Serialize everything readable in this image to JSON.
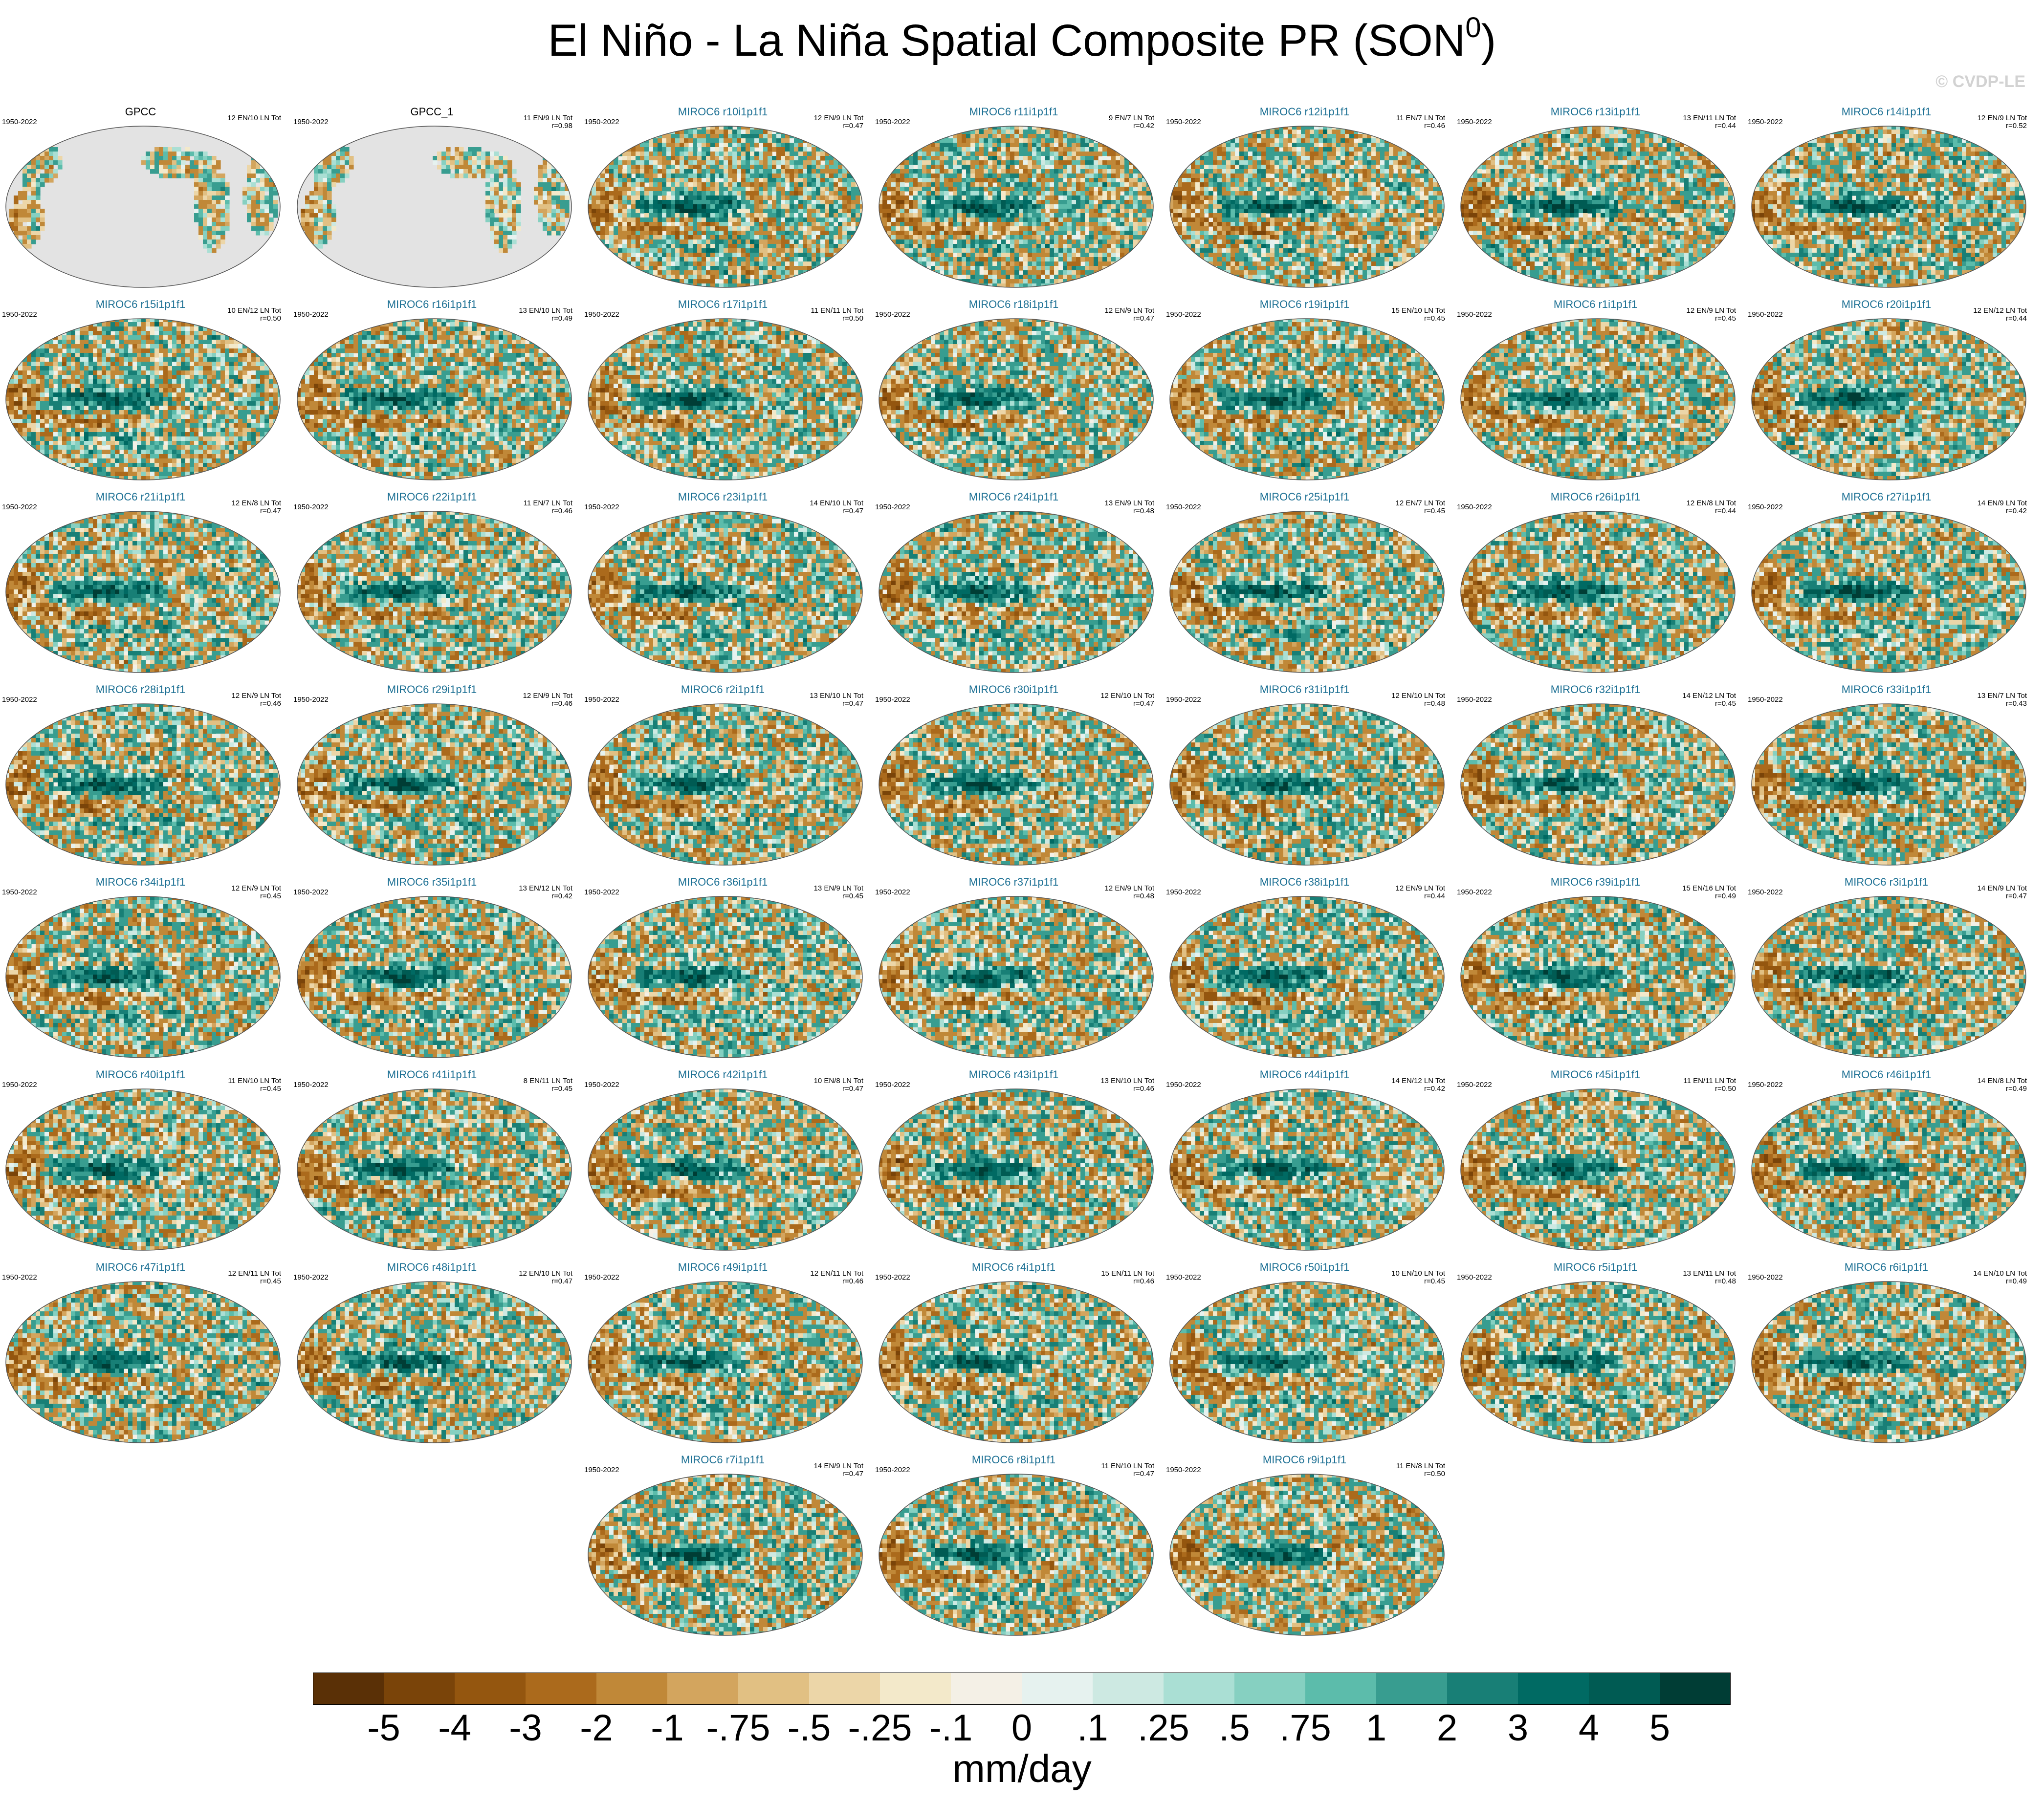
{
  "title": "El Niño - La Niña Spatial Composite PR (SON",
  "title_superscript": "0",
  "title_close": ")",
  "watermark": "© CVDP-LE",
  "units": "mm/day",
  "colorbar": {
    "labels": [
      "-5",
      "-4",
      "-3",
      "-2",
      "-1",
      "-.75",
      "-.5",
      "-.25",
      "-.1",
      "0",
      ".1",
      ".25",
      ".5",
      ".75",
      "1",
      "2",
      "3",
      "4",
      "5"
    ],
    "colors": [
      "#5a3006",
      "#7a4409",
      "#94560f",
      "#ab6a1c",
      "#c08838",
      "#d3a55e",
      "#e1c083",
      "#ecd6a8",
      "#f3e9ca",
      "#f4f0e6",
      "#e6f2ef",
      "#cde9e2",
      "#aadfd4",
      "#86d0c1",
      "#5cbcab",
      "#389d90",
      "#187f76",
      "#006a63",
      "#005b53",
      "#003d35"
    ]
  },
  "chart_data": {
    "type": "heatmap",
    "title": "El Niño - La Niña Spatial Composite PR (SON0)",
    "variable": "PR",
    "season": "SON0",
    "units": "mm/day",
    "colorbar_levels": [
      -5,
      -4,
      -3,
      -2,
      -1,
      -0.75,
      -0.5,
      -0.25,
      -0.1,
      0,
      0.1,
      0.25,
      0.5,
      0.75,
      1,
      2,
      3,
      4,
      5
    ],
    "panels": [
      {
        "name": "GPCC",
        "period": "1950-2022",
        "en": 12,
        "ln": 10,
        "r": null,
        "kind": "obs"
      },
      {
        "name": "GPCC_1",
        "period": "1950-2022",
        "en": 11,
        "ln": 9,
        "r": "0.98",
        "kind": "obs"
      },
      {
        "name": "MIROC6 r10i1p1f1",
        "period": "1950-2022",
        "en": 12,
        "ln": 9,
        "r": "0.47",
        "kind": "model"
      },
      {
        "name": "MIROC6 r11i1p1f1",
        "period": "1950-2022",
        "en": 9,
        "ln": 7,
        "r": "0.42",
        "kind": "model"
      },
      {
        "name": "MIROC6 r12i1p1f1",
        "period": "1950-2022",
        "en": 11,
        "ln": 7,
        "r": "0.46",
        "kind": "model"
      },
      {
        "name": "MIROC6 r13i1p1f1",
        "period": "1950-2022",
        "en": 13,
        "ln": 11,
        "r": "0.44",
        "kind": "model"
      },
      {
        "name": "MIROC6 r14i1p1f1",
        "period": "1950-2022",
        "en": 12,
        "ln": 9,
        "r": "0.52",
        "kind": "model"
      },
      {
        "name": "MIROC6 r15i1p1f1",
        "period": "1950-2022",
        "en": 10,
        "ln": 12,
        "r": "0.50",
        "kind": "model"
      },
      {
        "name": "MIROC6 r16i1p1f1",
        "period": "1950-2022",
        "en": 13,
        "ln": 10,
        "r": "0.49",
        "kind": "model"
      },
      {
        "name": "MIROC6 r17i1p1f1",
        "period": "1950-2022",
        "en": 11,
        "ln": 11,
        "r": "0.50",
        "kind": "model"
      },
      {
        "name": "MIROC6 r18i1p1f1",
        "period": "1950-2022",
        "en": 12,
        "ln": 9,
        "r": "0.47",
        "kind": "model"
      },
      {
        "name": "MIROC6 r19i1p1f1",
        "period": "1950-2022",
        "en": 15,
        "ln": 10,
        "r": "0.45",
        "kind": "model"
      },
      {
        "name": "MIROC6 r1i1p1f1",
        "period": "1950-2022",
        "en": 12,
        "ln": 9,
        "r": "0.45",
        "kind": "model"
      },
      {
        "name": "MIROC6 r20i1p1f1",
        "period": "1950-2022",
        "en": 12,
        "ln": 12,
        "r": "0.44",
        "kind": "model"
      },
      {
        "name": "MIROC6 r21i1p1f1",
        "period": "1950-2022",
        "en": 12,
        "ln": 8,
        "r": "0.47",
        "kind": "model"
      },
      {
        "name": "MIROC6 r22i1p1f1",
        "period": "1950-2022",
        "en": 11,
        "ln": 7,
        "r": "0.46",
        "kind": "model"
      },
      {
        "name": "MIROC6 r23i1p1f1",
        "period": "1950-2022",
        "en": 14,
        "ln": 10,
        "r": "0.47",
        "kind": "model"
      },
      {
        "name": "MIROC6 r24i1p1f1",
        "period": "1950-2022",
        "en": 13,
        "ln": 9,
        "r": "0.48",
        "kind": "model"
      },
      {
        "name": "MIROC6 r25i1p1f1",
        "period": "1950-2022",
        "en": 12,
        "ln": 7,
        "r": "0.45",
        "kind": "model"
      },
      {
        "name": "MIROC6 r26i1p1f1",
        "period": "1950-2022",
        "en": 12,
        "ln": 8,
        "r": "0.44",
        "kind": "model"
      },
      {
        "name": "MIROC6 r27i1p1f1",
        "period": "1950-2022",
        "en": 14,
        "ln": 9,
        "r": "0.42",
        "kind": "model"
      },
      {
        "name": "MIROC6 r28i1p1f1",
        "period": "1950-2022",
        "en": 12,
        "ln": 9,
        "r": "0.46",
        "kind": "model"
      },
      {
        "name": "MIROC6 r29i1p1f1",
        "period": "1950-2022",
        "en": 12,
        "ln": 9,
        "r": "0.46",
        "kind": "model"
      },
      {
        "name": "MIROC6 r2i1p1f1",
        "period": "1950-2022",
        "en": 13,
        "ln": 10,
        "r": "0.47",
        "kind": "model"
      },
      {
        "name": "MIROC6 r30i1p1f1",
        "period": "1950-2022",
        "en": 12,
        "ln": 10,
        "r": "0.47",
        "kind": "model"
      },
      {
        "name": "MIROC6 r31i1p1f1",
        "period": "1950-2022",
        "en": 12,
        "ln": 10,
        "r": "0.48",
        "kind": "model"
      },
      {
        "name": "MIROC6 r32i1p1f1",
        "period": "1950-2022",
        "en": 14,
        "ln": 12,
        "r": "0.45",
        "kind": "model"
      },
      {
        "name": "MIROC6 r33i1p1f1",
        "period": "1950-2022",
        "en": 13,
        "ln": 7,
        "r": "0.43",
        "kind": "model"
      },
      {
        "name": "MIROC6 r34i1p1f1",
        "period": "1950-2022",
        "en": 12,
        "ln": 9,
        "r": "0.45",
        "kind": "model"
      },
      {
        "name": "MIROC6 r35i1p1f1",
        "period": "1950-2022",
        "en": 13,
        "ln": 12,
        "r": "0.42",
        "kind": "model"
      },
      {
        "name": "MIROC6 r36i1p1f1",
        "period": "1950-2022",
        "en": 13,
        "ln": 9,
        "r": "0.45",
        "kind": "model"
      },
      {
        "name": "MIROC6 r37i1p1f1",
        "period": "1950-2022",
        "en": 12,
        "ln": 9,
        "r": "0.48",
        "kind": "model"
      },
      {
        "name": "MIROC6 r38i1p1f1",
        "period": "1950-2022",
        "en": 12,
        "ln": 9,
        "r": "0.44",
        "kind": "model"
      },
      {
        "name": "MIROC6 r39i1p1f1",
        "period": "1950-2022",
        "en": 15,
        "ln": 16,
        "r": "0.49",
        "kind": "model"
      },
      {
        "name": "MIROC6 r3i1p1f1",
        "period": "1950-2022",
        "en": 14,
        "ln": 9,
        "r": "0.47",
        "kind": "model"
      },
      {
        "name": "MIROC6 r40i1p1f1",
        "period": "1950-2022",
        "en": 11,
        "ln": 10,
        "r": "0.45",
        "kind": "model"
      },
      {
        "name": "MIROC6 r41i1p1f1",
        "period": "1950-2022",
        "en": 8,
        "ln": 11,
        "r": "0.45",
        "kind": "model"
      },
      {
        "name": "MIROC6 r42i1p1f1",
        "period": "1950-2022",
        "en": 10,
        "ln": 8,
        "r": "0.47",
        "kind": "model"
      },
      {
        "name": "MIROC6 r43i1p1f1",
        "period": "1950-2022",
        "en": 13,
        "ln": 10,
        "r": "0.46",
        "kind": "model"
      },
      {
        "name": "MIROC6 r44i1p1f1",
        "period": "1950-2022",
        "en": 14,
        "ln": 12,
        "r": "0.42",
        "kind": "model"
      },
      {
        "name": "MIROC6 r45i1p1f1",
        "period": "1950-2022",
        "en": 11,
        "ln": 11,
        "r": "0.50",
        "kind": "model"
      },
      {
        "name": "MIROC6 r46i1p1f1",
        "period": "1950-2022",
        "en": 14,
        "ln": 8,
        "r": "0.49",
        "kind": "model"
      },
      {
        "name": "MIROC6 r47i1p1f1",
        "period": "1950-2022",
        "en": 12,
        "ln": 11,
        "r": "0.45",
        "kind": "model"
      },
      {
        "name": "MIROC6 r48i1p1f1",
        "period": "1950-2022",
        "en": 12,
        "ln": 10,
        "r": "0.47",
        "kind": "model"
      },
      {
        "name": "MIROC6 r49i1p1f1",
        "period": "1950-2022",
        "en": 12,
        "ln": 11,
        "r": "0.46",
        "kind": "model"
      },
      {
        "name": "MIROC6 r4i1p1f1",
        "period": "1950-2022",
        "en": 15,
        "ln": 11,
        "r": "0.46",
        "kind": "model"
      },
      {
        "name": "MIROC6 r50i1p1f1",
        "period": "1950-2022",
        "en": 10,
        "ln": 10,
        "r": "0.45",
        "kind": "model"
      },
      {
        "name": "MIROC6 r5i1p1f1",
        "period": "1950-2022",
        "en": 13,
        "ln": 11,
        "r": "0.48",
        "kind": "model"
      },
      {
        "name": "MIROC6 r6i1p1f1",
        "period": "1950-2022",
        "en": 14,
        "ln": 10,
        "r": "0.49",
        "kind": "model"
      },
      {
        "name": "MIROC6 r7i1p1f1",
        "period": "1950-2022",
        "en": 14,
        "ln": 9,
        "r": "0.47",
        "kind": "model"
      },
      {
        "name": "MIROC6 r8i1p1f1",
        "period": "1950-2022",
        "en": 11,
        "ln": 10,
        "r": "0.47",
        "kind": "model"
      },
      {
        "name": "MIROC6 r9i1p1f1",
        "period": "1950-2022",
        "en": 11,
        "ln": 8,
        "r": "0.50",
        "kind": "model"
      }
    ]
  }
}
